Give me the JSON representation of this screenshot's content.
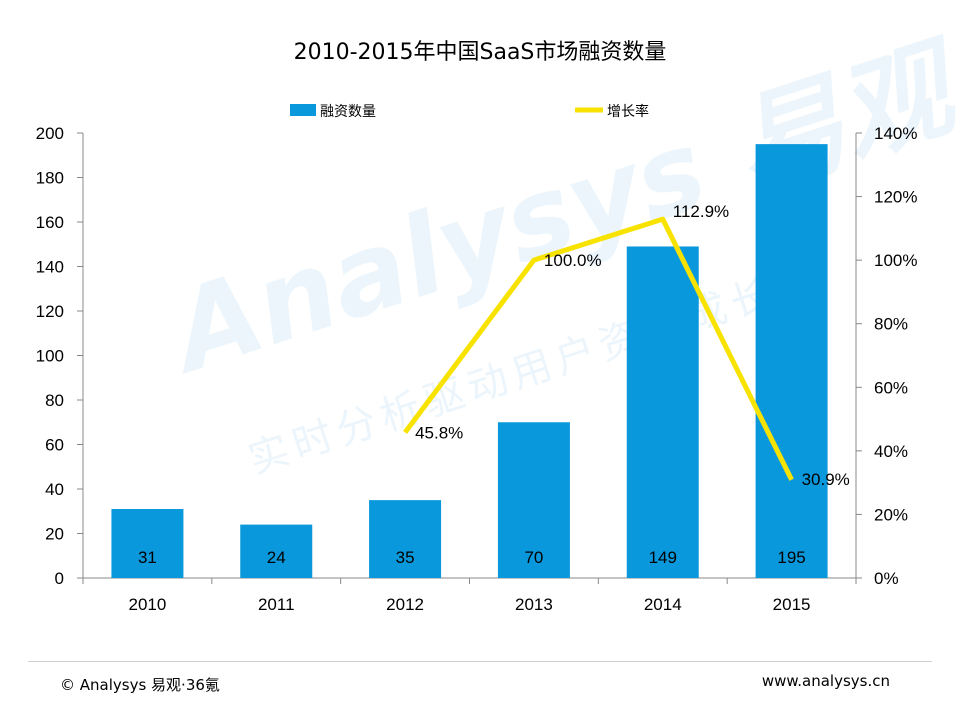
{
  "chart_data": {
    "type": "bar",
    "title": "2010-2015年中国SaaS市场融资数量",
    "categories": [
      "2010",
      "2011",
      "2012",
      "2013",
      "2014",
      "2015"
    ],
    "series": [
      {
        "name": "融资数量",
        "type": "bar",
        "axis": "left",
        "values": [
          31,
          24,
          35,
          70,
          149,
          195
        ],
        "labels": [
          "31",
          "24",
          "35",
          "70",
          "149",
          "195"
        ],
        "color": "#0a98dc"
      },
      {
        "name": "增长率",
        "type": "line",
        "axis": "right",
        "values": [
          null,
          null,
          45.8,
          100.0,
          112.9,
          30.9
        ],
        "labels": [
          "",
          "",
          "45.8%",
          "100.0%",
          "112.9%",
          "30.9%"
        ],
        "color": "#f7e200"
      }
    ],
    "y_left": {
      "ylim": [
        0,
        200
      ],
      "ticks": [
        "0",
        "20",
        "40",
        "60",
        "80",
        "100",
        "120",
        "140",
        "160",
        "180",
        "200"
      ]
    },
    "y_right": {
      "ylim": [
        0,
        140
      ],
      "ticks": [
        "0%",
        "20%",
        "40%",
        "60%",
        "80%",
        "100%",
        "120%",
        "140%"
      ]
    },
    "legend": "top",
    "grid": false
  },
  "watermark": {
    "main": "Analysys 易观",
    "sub": "实时分析驱动用户资产成长"
  },
  "footer": {
    "copyright": "© Analysys 易观·36氪",
    "website": "www.analysys.cn"
  }
}
